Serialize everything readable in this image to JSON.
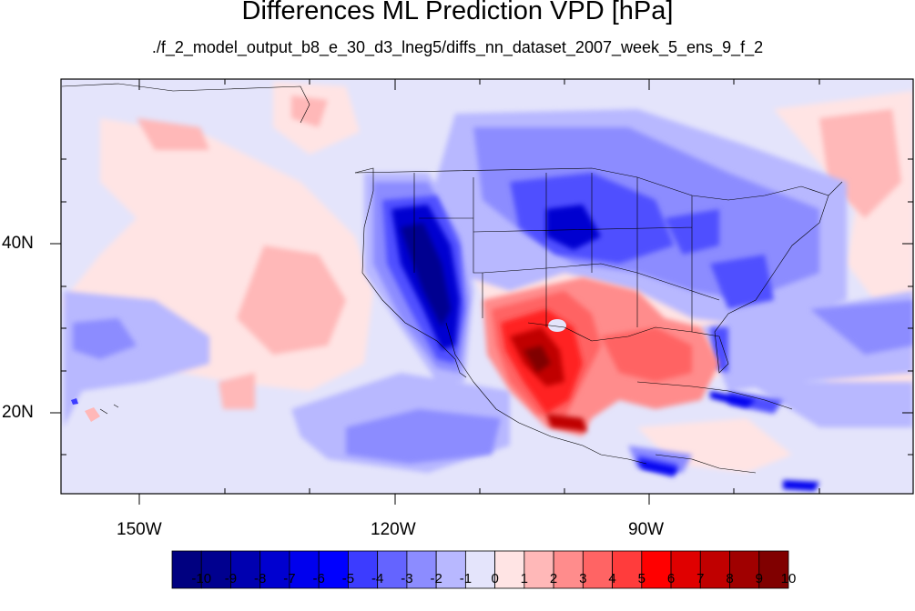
{
  "title": "Differences ML Prediction VPD [hPa]",
  "subtitle": "./f_2_model_output_b8_e_30_d3_lneg5/diffs_nn_dataset_2007_week_5_ens_9_f_2",
  "lat_labels": [
    "40N",
    "20N"
  ],
  "lon_labels": [
    "150W",
    "120W",
    "90W"
  ],
  "colorbar": {
    "ticks": [
      "-10",
      "-9",
      "-8",
      "-7",
      "-6",
      "-5",
      "-4",
      "-3",
      "-2",
      "-1",
      "0",
      "1",
      "2",
      "3",
      "4",
      "5",
      "6",
      "7",
      "8",
      "9",
      "10"
    ],
    "colors": [
      "#000080",
      "#00008f",
      "#0000b0",
      "#0000d0",
      "#0000ee",
      "#0000ff",
      "#3c3cff",
      "#6464ff",
      "#8c8cff",
      "#b8b8ff",
      "#e4e4fb",
      "#ffe4e4",
      "#ffb8b8",
      "#ff8c8c",
      "#ff6464",
      "#ff3c3c",
      "#ff0000",
      "#e00000",
      "#c00000",
      "#a00000",
      "#800000"
    ]
  }
}
